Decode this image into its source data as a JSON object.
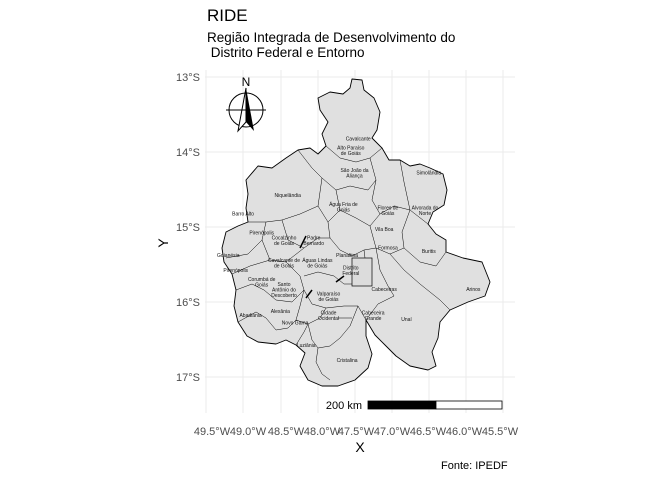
{
  "title": "RIDE",
  "subtitle": "Região Integrada de Desenvolvimento do\n Distrito Federal e Entorno",
  "caption": "Fonte: IPEDF",
  "chart_data": {
    "type": "map",
    "xlabel": "X",
    "ylabel": "Y",
    "x_ticks": [
      "49.5°W",
      "49.0°W",
      "48.5°W",
      "48.0°W",
      "47.5°W",
      "47.0°W",
      "46.5°W",
      "46.0°W",
      "45.5°W"
    ],
    "y_ticks": [
      "13°S",
      "14°S",
      "15°S",
      "16°S",
      "17°S"
    ],
    "xlim": [
      -49.6,
      -45.4
    ],
    "ylim": [
      -17.4,
      -12.9
    ],
    "grid": true,
    "fill_color": "#e0e0e0",
    "border_color": "#000000",
    "north_arrow_label": "N",
    "scale_bar_label": "200 km",
    "municipalities": [
      {
        "name": "Cavalcante",
        "lon": -47.45,
        "lat": -13.85
      },
      {
        "name": "Alto Paraíso\nde Goiás",
        "lon": -47.55,
        "lat": -14.0
      },
      {
        "name": "São João da\nAliança",
        "lon": -47.5,
        "lat": -14.3
      },
      {
        "name": "Simolândia",
        "lon": -46.5,
        "lat": -14.3
      },
      {
        "name": "Niquelândia",
        "lon": -48.4,
        "lat": -14.6
      },
      {
        "name": "Água Fria de\nGoiás",
        "lon": -47.65,
        "lat": -14.75
      },
      {
        "name": "Flores de\nGoiás",
        "lon": -47.05,
        "lat": -14.8
      },
      {
        "name": "Alvorada do\nNorte",
        "lon": -46.55,
        "lat": -14.8
      },
      {
        "name": "Barro Alto",
        "lon": -49.0,
        "lat": -14.85
      },
      {
        "name": "Vila Boa",
        "lon": -47.1,
        "lat": -15.05
      },
      {
        "name": "Pirenópolis",
        "lon": -48.75,
        "lat": -15.1
      },
      {
        "name": "Cocalzinho\nde Goiás",
        "lon": -48.45,
        "lat": -15.2
      },
      {
        "name": "Padre\nBernardo",
        "lon": -48.05,
        "lat": -15.2
      },
      {
        "name": "Formosa",
        "lon": -47.05,
        "lat": -15.3
      },
      {
        "name": "Buritis",
        "lon": -46.5,
        "lat": -15.35
      },
      {
        "name": "Goianésia",
        "lon": -49.2,
        "lat": -15.4
      },
      {
        "name": "Planaltina",
        "lon": -47.6,
        "lat": -15.4
      },
      {
        "name": "Cavalcante de\nde Goiás",
        "lon": -48.45,
        "lat": -15.5
      },
      {
        "name": "Águas Lindas\nde Goiás",
        "lon": -48.0,
        "lat": -15.5
      },
      {
        "name": "Pirenópolis",
        "lon": -49.1,
        "lat": -15.6
      },
      {
        "name": "Distrito\nFederal",
        "lon": -47.55,
        "lat": -15.6
      },
      {
        "name": "Corumbá de\nGoiás",
        "lon": -48.75,
        "lat": -15.75
      },
      {
        "name": "Santo\nAntônio do\nDescoberto",
        "lon": -48.45,
        "lat": -15.85
      },
      {
        "name": "Cabeceiras",
        "lon": -47.1,
        "lat": -15.85
      },
      {
        "name": "Arinos",
        "lon": -45.9,
        "lat": -15.85
      },
      {
        "name": "Valparaíso\nde Goiás",
        "lon": -47.85,
        "lat": -15.95
      },
      {
        "name": "Abadiânia",
        "lon": -48.9,
        "lat": -16.2
      },
      {
        "name": "Alexânia",
        "lon": -48.5,
        "lat": -16.15
      },
      {
        "name": "Novo Gama",
        "lon": -48.3,
        "lat": -16.3
      },
      {
        "name": "Cidade\nOcidental",
        "lon": -47.85,
        "lat": -16.2
      },
      {
        "name": "Cabeceira\nGrande",
        "lon": -47.25,
        "lat": -16.2
      },
      {
        "name": "Unaí",
        "lon": -46.8,
        "lat": -16.25
      },
      {
        "name": "Luziânia",
        "lon": -48.15,
        "lat": -16.6
      },
      {
        "name": "Cristalina",
        "lon": -47.6,
        "lat": -16.8
      }
    ]
  }
}
